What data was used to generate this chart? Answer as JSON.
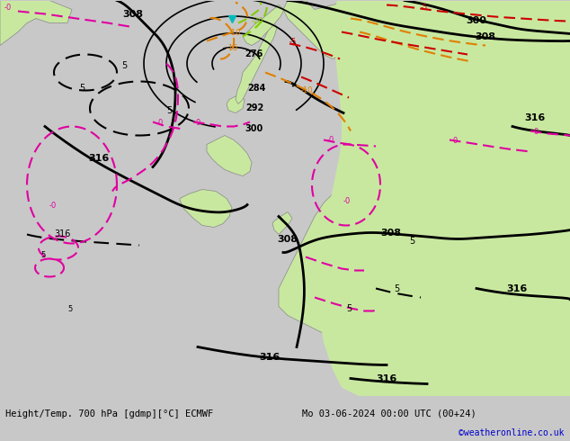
{
  "title_left": "Height/Temp. 700 hPa [gdmp][°C] ECMWF",
  "title_right": "Mo 03-06-2024 00:00 UTC (00+24)",
  "credit": "©weatheronline.co.uk",
  "bg_color": "#c8c8c8",
  "sea_color": "#d2d2d2",
  "land_color": "#c8e8a0",
  "land_color2": "#b8d890",
  "bottom_bar_color": "#e8e8e8",
  "title_color": "#000000",
  "credit_color": "#0000cc",
  "black": "#000000",
  "pink": "#e000a0",
  "orange": "#e08000",
  "red": "#cc0000",
  "green": "#80cc00",
  "cyan": "#00bbbb",
  "figsize": [
    6.34,
    4.9
  ],
  "dpi": 100
}
